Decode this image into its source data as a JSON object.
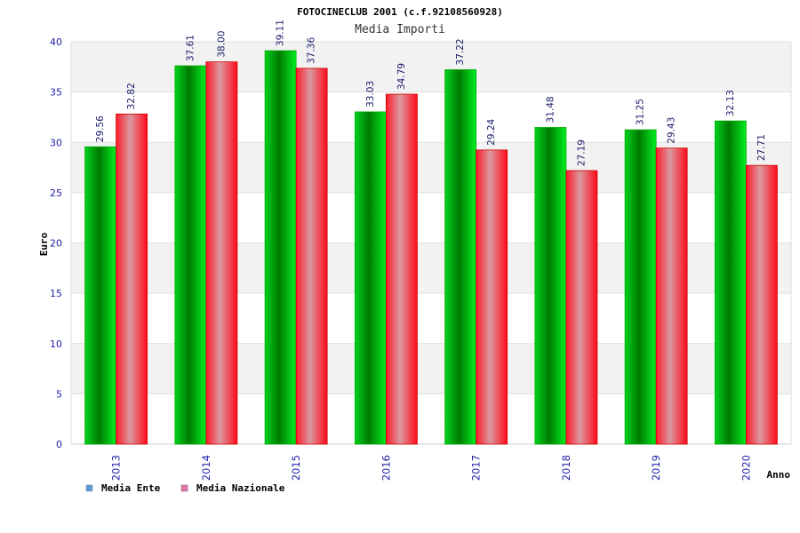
{
  "chart_data": {
    "type": "bar",
    "title": "FOTOCINECLUB 2001 (c.f.92108560928)",
    "subtitle": "Media Importi",
    "xlabel": "Anno",
    "ylabel": "Euro",
    "categories": [
      "2013",
      "2014",
      "2015",
      "2016",
      "2017",
      "2018",
      "2019",
      "2020"
    ],
    "series": [
      {
        "name": "Media Ente",
        "values": [
          29.56,
          37.61,
          39.11,
          33.03,
          37.22,
          31.48,
          31.25,
          32.13
        ],
        "value_labels": [
          "29.56",
          "37.61",
          "39.11",
          "33.03",
          "37.22",
          "31.48",
          "31.25",
          "32.13"
        ],
        "color": "#00cc00",
        "legend_color": "#5b9bd5"
      },
      {
        "name": "Media Nazionale",
        "values": [
          32.82,
          38.0,
          37.36,
          34.79,
          29.24,
          27.19,
          29.43,
          27.71
        ],
        "value_labels": [
          "32.82",
          "38.00",
          "37.36",
          "34.79",
          "29.24",
          "27.19",
          "29.43",
          "27.71"
        ],
        "color": "#ee1122",
        "legend_color": "#dd77aa"
      }
    ],
    "ylim": [
      0,
      40
    ],
    "yticks": [
      0,
      5,
      10,
      15,
      20,
      25,
      30,
      35,
      40
    ],
    "grid": true,
    "legend_placement": "bottom-left"
  }
}
